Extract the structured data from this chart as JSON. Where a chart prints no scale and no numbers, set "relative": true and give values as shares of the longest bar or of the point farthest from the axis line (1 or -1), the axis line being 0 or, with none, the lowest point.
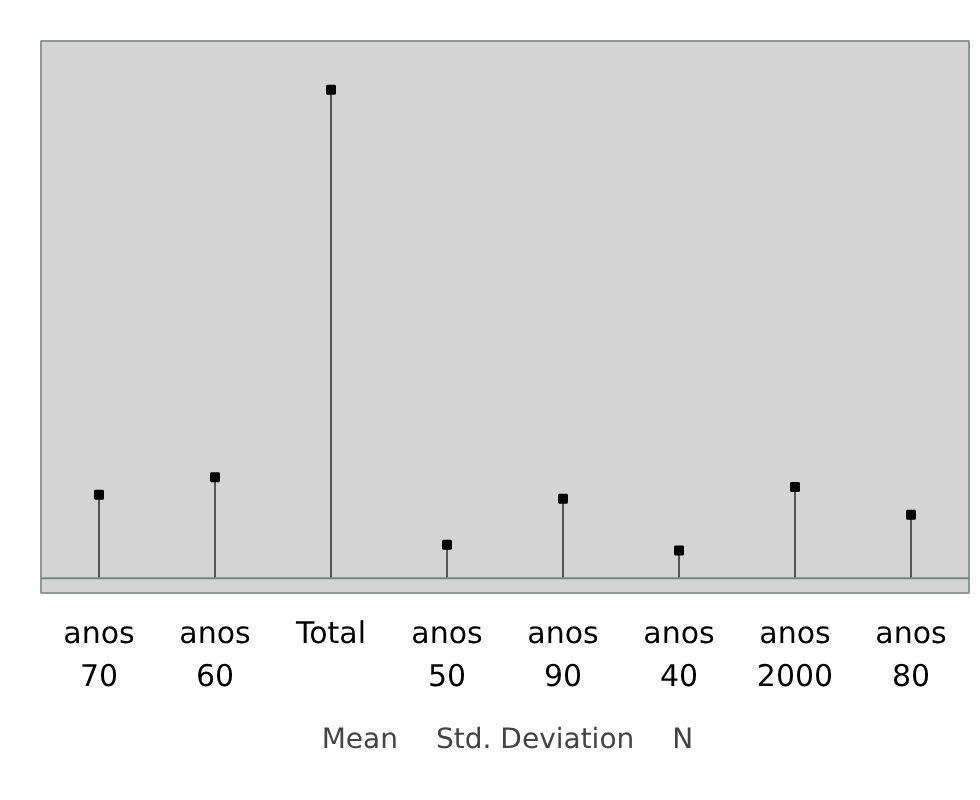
{
  "chart_data": {
    "type": "lollipop",
    "relative": true,
    "categories": [
      "anos 70",
      "anos 60",
      "Total",
      "anos 50",
      "anos 90",
      "anos 40",
      "anos 2000",
      "anos 80"
    ],
    "series": [
      {
        "name": "N",
        "color": "#000000",
        "values": [
          0.171,
          0.207,
          1,
          0.069,
          0.163,
          0.057,
          0.187,
          0.13
        ]
      }
    ],
    "marker": "square",
    "legend": "bottom",
    "annotations": [
      "Mean",
      "Std. Deviation"
    ]
  }
}
